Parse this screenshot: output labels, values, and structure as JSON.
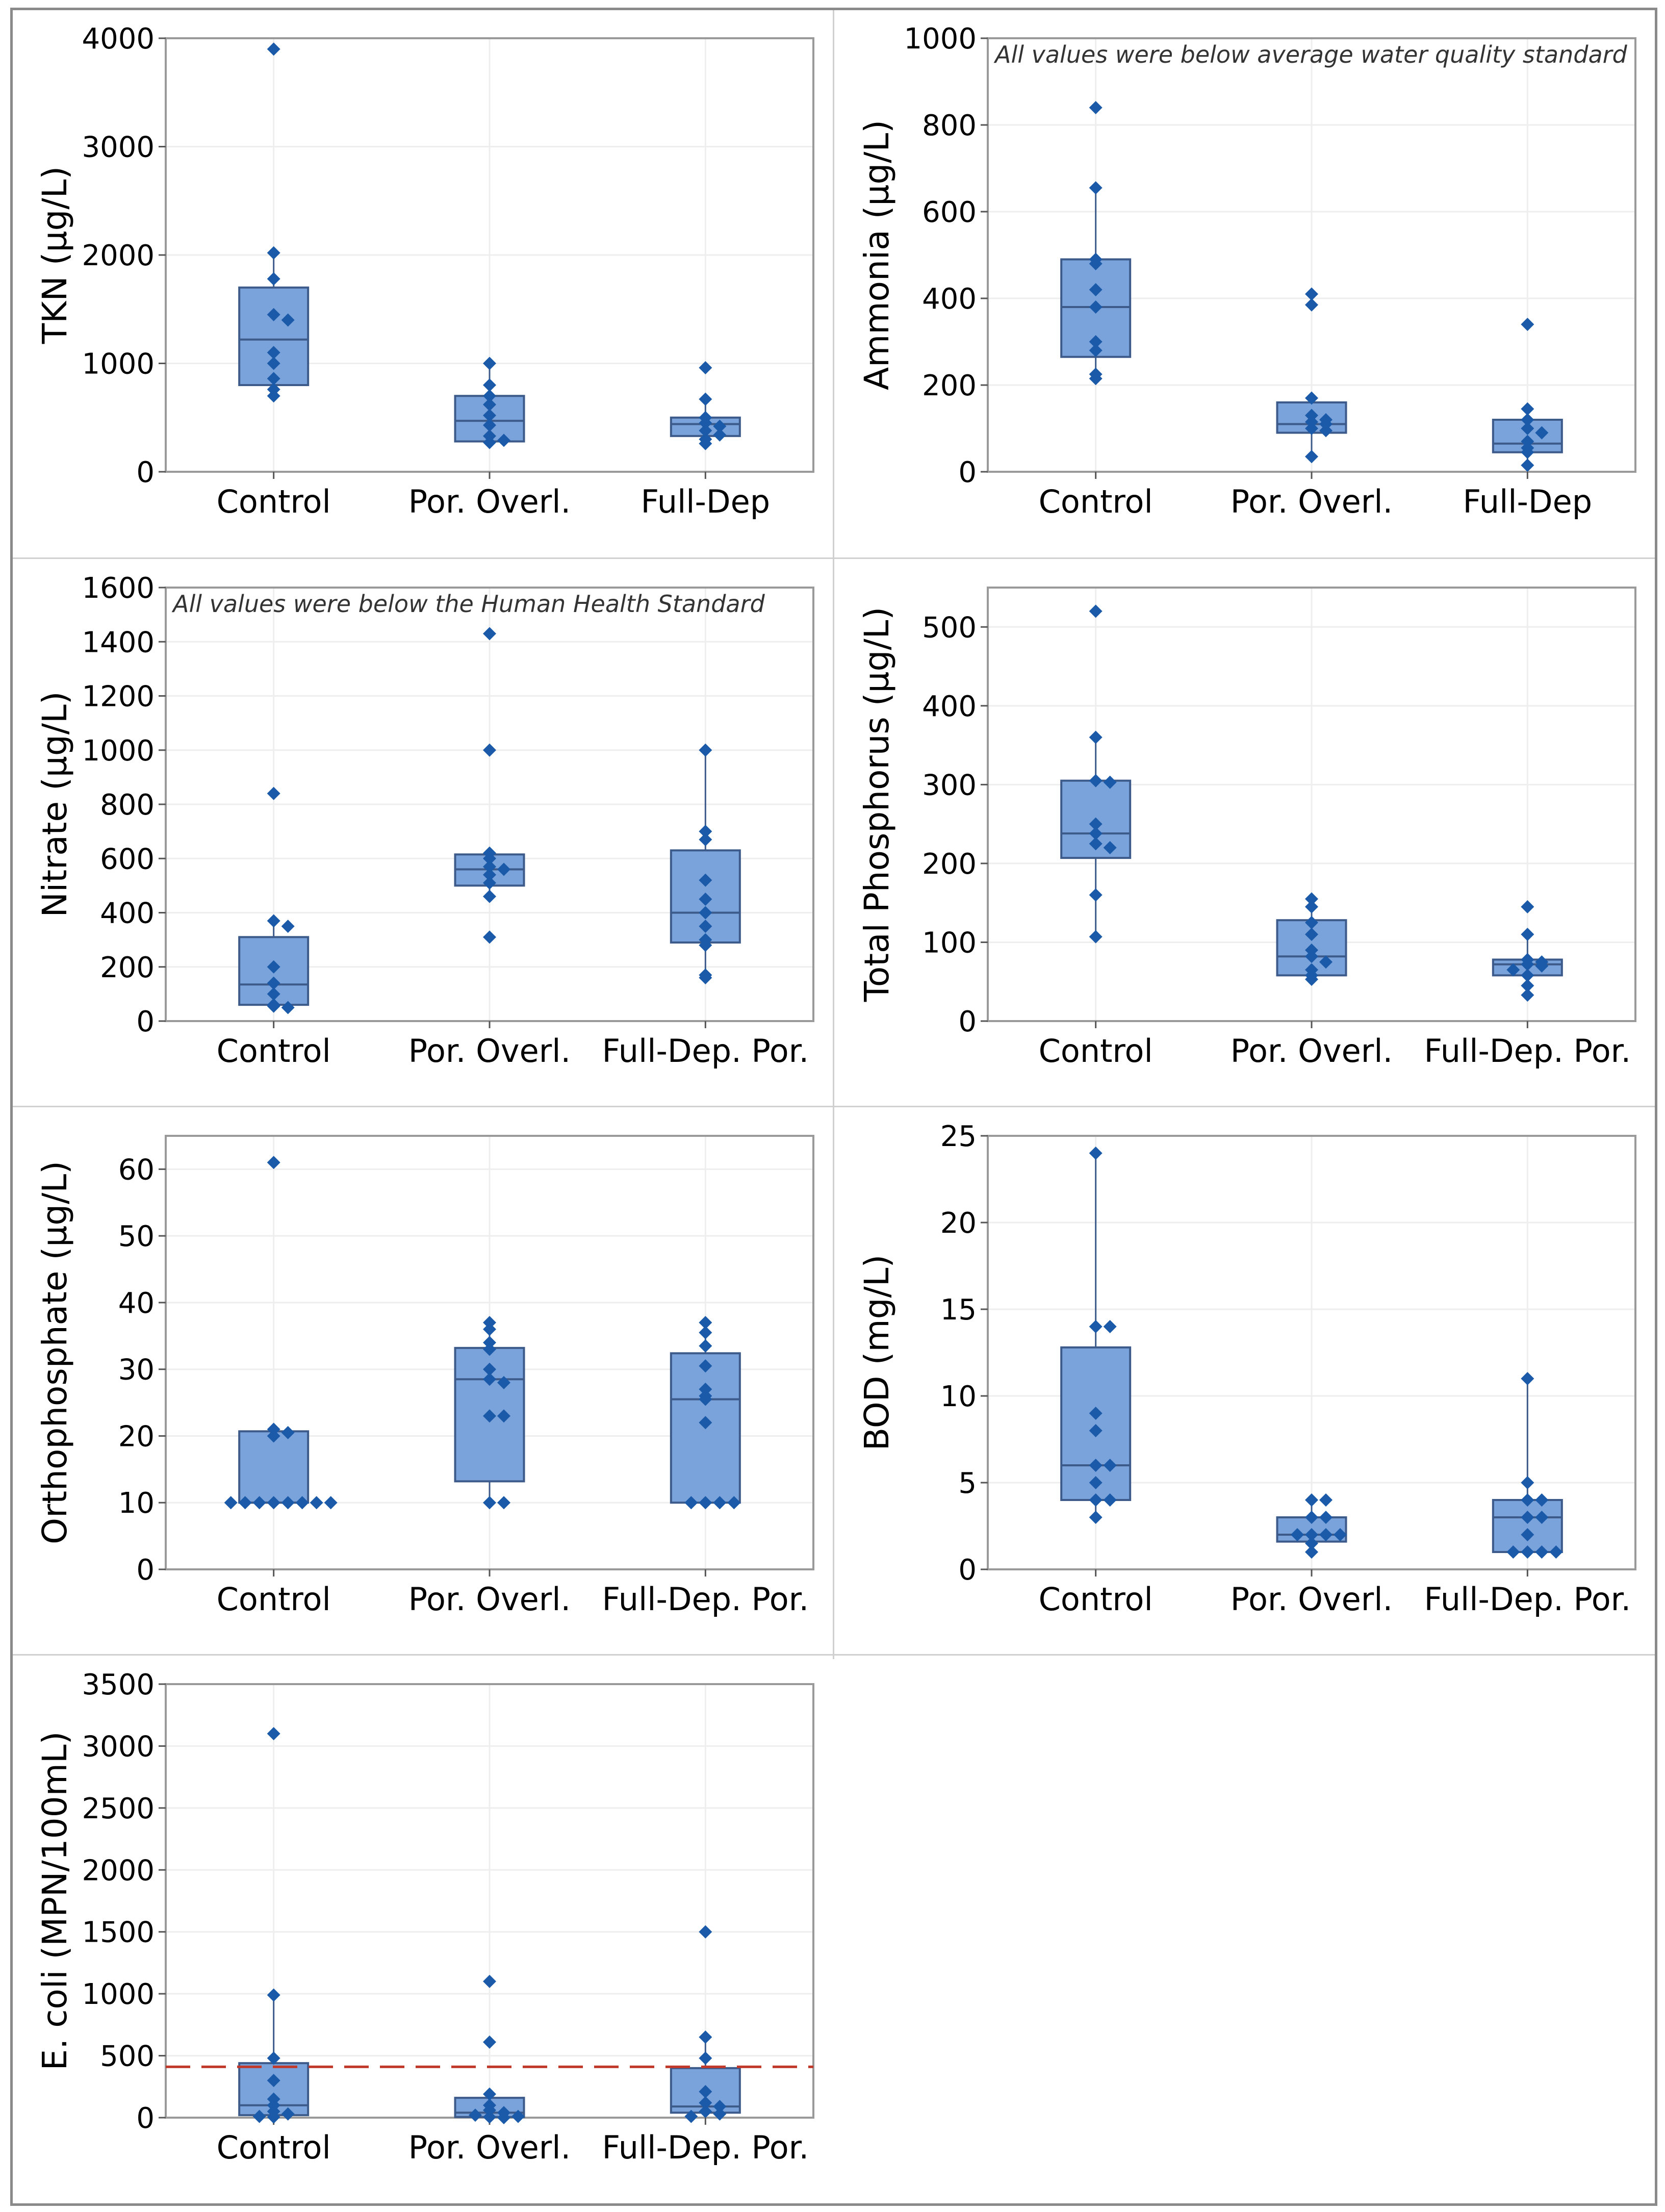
{
  "colors": {
    "box_fill": "#7aa3db",
    "box_edge": "#3c5a8a",
    "point": "#1b5aa8",
    "reference_line": "#c0392b"
  },
  "chart_data": [
    {
      "id": "tkn",
      "type": "box",
      "ylabel": "TKN (µg/L)",
      "ylim": [
        0,
        4000
      ],
      "yticks": [
        0,
        1000,
        2000,
        3000,
        4000
      ],
      "categories": [
        "Control",
        "Por. Overl.",
        "Full-Dep"
      ],
      "groups": [
        {
          "q1": 800,
          "median": 1220,
          "q3": 1700,
          "whisker_low": 680,
          "whisker_high": 2020,
          "points": [
            3900,
            2020,
            1780,
            1450,
            1400,
            1100,
            1000,
            860,
            760,
            700
          ]
        },
        {
          "q1": 280,
          "median": 470,
          "q3": 700,
          "whisker_low": 260,
          "whisker_high": 1000,
          "points": [
            1000,
            800,
            700,
            620,
            520,
            430,
            330,
            290,
            270
          ]
        },
        {
          "q1": 330,
          "median": 440,
          "q3": 500,
          "whisker_low": 260,
          "whisker_high": 670,
          "points": [
            960,
            670,
            500,
            450,
            420,
            380,
            340,
            300,
            260
          ]
        }
      ]
    },
    {
      "id": "ammonia",
      "type": "box",
      "ylabel": "Ammonia (µg/L)",
      "ylim": [
        0,
        1000
      ],
      "yticks": [
        0,
        200,
        400,
        600,
        800,
        1000
      ],
      "note": "All values were below average water quality standard",
      "categories": [
        "Control",
        "Por. Overl.",
        "Full-Dep"
      ],
      "groups": [
        {
          "q1": 265,
          "median": 380,
          "q3": 490,
          "whisker_low": 215,
          "whisker_high": 655,
          "points": [
            840,
            655,
            490,
            480,
            420,
            380,
            300,
            280,
            225,
            215
          ]
        },
        {
          "q1": 90,
          "median": 110,
          "q3": 160,
          "whisker_low": 35,
          "whisker_high": 170,
          "points": [
            410,
            385,
            170,
            130,
            120,
            115,
            110,
            100,
            95,
            35
          ]
        },
        {
          "q1": 45,
          "median": 65,
          "q3": 120,
          "whisker_low": 15,
          "whisker_high": 145,
          "points": [
            340,
            145,
            120,
            100,
            90,
            70,
            55,
            45,
            15
          ]
        }
      ]
    },
    {
      "id": "nitrate",
      "type": "box",
      "ylabel": "Nitrate (µg/L)",
      "ylim": [
        0,
        1600
      ],
      "yticks": [
        0,
        200,
        400,
        600,
        800,
        1000,
        1200,
        1400,
        1600
      ],
      "note": "All values were below the Human Health Standard",
      "categories": [
        "Control",
        "Por. Overl.",
        "Full-Dep. Por."
      ],
      "groups": [
        {
          "q1": 60,
          "median": 135,
          "q3": 310,
          "whisker_low": 50,
          "whisker_high": 370,
          "points": [
            840,
            370,
            350,
            200,
            140,
            100,
            60,
            55,
            50
          ]
        },
        {
          "q1": 500,
          "median": 560,
          "q3": 615,
          "whisker_low": 460,
          "whisker_high": 620,
          "points": [
            1430,
            1000,
            620,
            600,
            570,
            560,
            540,
            510,
            460,
            310
          ]
        },
        {
          "q1": 290,
          "median": 400,
          "q3": 630,
          "whisker_low": 160,
          "whisker_high": 1000,
          "points": [
            1000,
            700,
            670,
            520,
            450,
            400,
            350,
            300,
            280,
            170,
            160
          ]
        }
      ]
    },
    {
      "id": "phosphorus",
      "type": "box",
      "ylabel": "Total Phosphorus (µg/L)",
      "ylim": [
        0,
        550
      ],
      "yticks": [
        0,
        100,
        200,
        300,
        400,
        500
      ],
      "categories": [
        "Control",
        "Por. Overl.",
        "Full-Dep. Por."
      ],
      "groups": [
        {
          "q1": 207,
          "median": 238,
          "q3": 305,
          "whisker_low": 107,
          "whisker_high": 360,
          "points": [
            520,
            360,
            305,
            303,
            250,
            238,
            225,
            220,
            160,
            107
          ]
        },
        {
          "q1": 58,
          "median": 82,
          "q3": 128,
          "whisker_low": 53,
          "whisker_high": 155,
          "points": [
            155,
            145,
            125,
            110,
            90,
            82,
            75,
            65,
            58,
            53
          ]
        },
        {
          "q1": 58,
          "median": 72,
          "q3": 78,
          "whisker_low": 33,
          "whisker_high": 110,
          "points": [
            145,
            110,
            78,
            75,
            72,
            70,
            65,
            58,
            45,
            33
          ]
        }
      ]
    },
    {
      "id": "orthophosphate",
      "type": "box",
      "ylabel": "Orthophosphate (µg/L)",
      "ylim": [
        0,
        65
      ],
      "yticks": [
        0,
        10,
        20,
        30,
        40,
        50,
        60
      ],
      "categories": [
        "Control",
        "Por. Overl.",
        "Full-Dep. Por."
      ],
      "groups": [
        {
          "q1": 10,
          "median": 10,
          "q3": 20.7,
          "whisker_low": 10,
          "whisker_high": 21,
          "points": [
            61,
            21,
            20.5,
            20,
            10,
            10,
            10,
            10,
            10,
            10,
            10,
            10
          ]
        },
        {
          "q1": 13.2,
          "median": 28.5,
          "q3": 33.2,
          "whisker_low": 10,
          "whisker_high": 37,
          "points": [
            37,
            36,
            34,
            33,
            30,
            28.5,
            28,
            23,
            23,
            10,
            10
          ]
        },
        {
          "q1": 10,
          "median": 25.5,
          "q3": 32.4,
          "whisker_low": 10,
          "whisker_high": 37,
          "points": [
            37,
            35.5,
            33.5,
            30.5,
            27,
            26,
            25.5,
            22,
            10,
            10,
            10,
            10
          ]
        }
      ]
    },
    {
      "id": "bod",
      "type": "box",
      "ylabel": "BOD (mg/L)",
      "ylim": [
        0,
        25
      ],
      "yticks": [
        0,
        5,
        10,
        15,
        20,
        25
      ],
      "categories": [
        "Control",
        "Por. Overl.",
        "Full-Dep. Por."
      ],
      "groups": [
        {
          "q1": 4,
          "median": 6,
          "q3": 12.8,
          "whisker_low": 3,
          "whisker_high": 24,
          "points": [
            24,
            14,
            14,
            9,
            8,
            6,
            6,
            5,
            4,
            4,
            3
          ]
        },
        {
          "q1": 1.6,
          "median": 2,
          "q3": 3,
          "whisker_low": 1,
          "whisker_high": 4,
          "points": [
            4,
            4,
            3,
            3,
            2,
            2,
            2,
            2,
            1.5,
            1
          ]
        },
        {
          "q1": 1,
          "median": 3,
          "q3": 4,
          "whisker_low": 1,
          "whisker_high": 11,
          "points": [
            11,
            5,
            4,
            4,
            3,
            3,
            2,
            1,
            1,
            1,
            1
          ]
        }
      ]
    },
    {
      "id": "ecoli",
      "type": "box",
      "ylabel": "E. coli (MPN/100mL)",
      "ylim": [
        0,
        3500
      ],
      "yticks": [
        0,
        500,
        1000,
        1500,
        2000,
        2500,
        3000,
        3500
      ],
      "categories": [
        "Control",
        "Por. Overl.",
        "Full-Dep. Por."
      ],
      "reference_line": 410,
      "groups": [
        {
          "q1": 20,
          "median": 100,
          "q3": 440,
          "whisker_low": 5,
          "whisker_high": 990,
          "points": [
            3100,
            990,
            480,
            300,
            150,
            100,
            50,
            30,
            10,
            5
          ]
        },
        {
          "q1": 5,
          "median": 40,
          "q3": 160,
          "whisker_low": 0,
          "whisker_high": 190,
          "points": [
            1100,
            610,
            190,
            100,
            60,
            40,
            20,
            10,
            5,
            0
          ]
        },
        {
          "q1": 40,
          "median": 90,
          "q3": 400,
          "whisker_low": 10,
          "whisker_high": 650,
          "points": [
            1500,
            650,
            480,
            210,
            120,
            90,
            50,
            30,
            10
          ]
        }
      ]
    }
  ]
}
